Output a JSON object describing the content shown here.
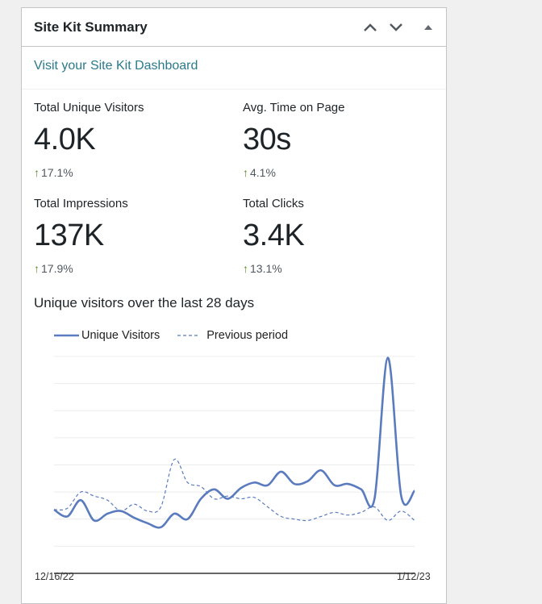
{
  "widget": {
    "title": "Site Kit Summary",
    "controls": [
      {
        "name": "move-up-button",
        "icon": "chevron-up-icon"
      },
      {
        "name": "move-down-button",
        "icon": "chevron-down-icon"
      },
      {
        "name": "toggle-panel-button",
        "icon": "triangle-up-icon"
      }
    ],
    "dashboard_link": "Visit your Site Kit Dashboard",
    "link_color": "#2a7a8c"
  },
  "stats": [
    {
      "label": "Total Unique Visitors",
      "value": "4.0K",
      "change": "17.1%",
      "direction": "up"
    },
    {
      "label": "Avg. Time on Page",
      "value": "30s",
      "change": "4.1%",
      "direction": "up"
    },
    {
      "label": "Total Impressions",
      "value": "137K",
      "change": "17.9%",
      "direction": "up"
    },
    {
      "label": "Total Clicks",
      "value": "3.4K",
      "change": "13.1%",
      "direction": "up"
    }
  ],
  "up_arrow": "↑",
  "colors": {
    "accent": "#5b7bbf",
    "positive": "#5b8a1f",
    "gridline": "#ececec",
    "axis": "#333333"
  },
  "chart_data": {
    "type": "line",
    "title": "Unique visitors over the last 28 days",
    "xlabel": "",
    "ylabel": "",
    "x_tick_labels": [
      "12/16/22",
      "1/12/23"
    ],
    "legend_position": "top",
    "grid": true,
    "gridline_count": 8,
    "ylim": [
      0,
      8
    ],
    "y_unit_note": "relative gridline units (no y-axis labels shown)",
    "x": [
      1,
      2,
      3,
      4,
      5,
      6,
      7,
      8,
      9,
      10,
      11,
      12,
      13,
      14,
      15,
      16,
      17,
      18,
      19,
      20,
      21,
      22,
      23,
      24,
      25,
      26,
      27,
      28
    ],
    "series": [
      {
        "name": "Unique Visitors",
        "style": "solid",
        "values": [
          2.35,
          2.1,
          2.7,
          1.95,
          2.2,
          2.3,
          2.05,
          1.85,
          1.7,
          2.2,
          2.0,
          2.75,
          3.1,
          2.75,
          3.15,
          3.35,
          3.25,
          3.75,
          3.3,
          3.4,
          3.8,
          3.25,
          3.3,
          3.1,
          2.75,
          7.95,
          2.85,
          3.05
        ]
      },
      {
        "name": "Previous period",
        "style": "dashed",
        "values": [
          2.35,
          2.4,
          3.0,
          2.85,
          2.7,
          2.3,
          2.55,
          2.3,
          2.45,
          4.2,
          3.35,
          3.2,
          2.75,
          2.85,
          2.75,
          2.8,
          2.45,
          2.1,
          2.0,
          1.95,
          2.1,
          2.25,
          2.15,
          2.25,
          2.45,
          1.95,
          2.3,
          1.95
        ]
      }
    ]
  }
}
